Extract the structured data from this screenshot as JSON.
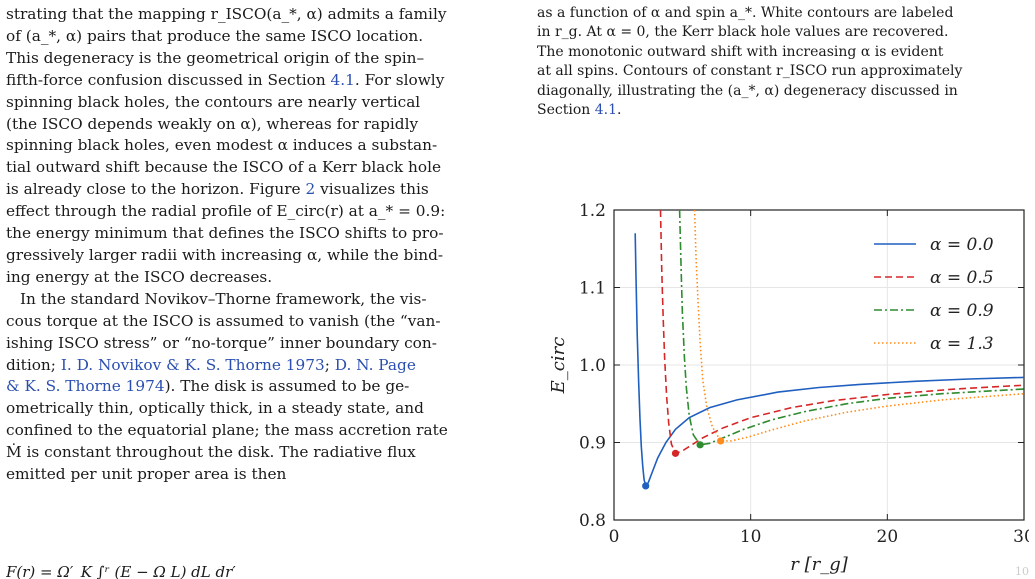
{
  "left_column": {
    "p1_lines": [
      "strating that the mapping r_ISCO(a_*, α) admits a family",
      "of (a_*, α) pairs that produce the same ISCO location.",
      "This degeneracy is the geometrical origin of the spin–",
      "fifth-force confusion discussed in Section ",
      "spinning black holes, the contours are nearly vertical",
      "(the ISCO depends weakly on α), whereas for rapidly",
      "spinning black holes, even modest α induces a substan-",
      "tial outward shift because the ISCO of a Kerr black hole",
      "is already close to the horizon. Figure ",
      "effect through the radial profile of E_circ(r) at a_* = 0.9:",
      "the energy minimum that defines the ISCO shifts to pro-",
      "gressively larger radii with increasing α, while the bind-",
      "ing energy at the ISCO decreases."
    ],
    "section_ref": "4.1",
    "slowly_text": ". For slowly",
    "figure_ref": "2",
    "visualizes_text": " visualizes this",
    "p2_lines": [
      "In the standard Novikov–Thorne framework, the vis-",
      "cous torque at the ISCO is assumed to vanish (the “van-",
      "ishing ISCO stress” or “no-torque” inner boundary con-",
      "dition; ",
      "& K. S. Thorne 1974",
      "). The disk is assumed to be ge-",
      "ometrically thin, optically thick, in a steady state, and",
      "confined to the equatorial plane; the mass accretion rate",
      "Ṁ is constant throughout the disk. The radiative flux",
      "emitted per unit proper area is then"
    ],
    "cite_novikov": "I. D. Novikov & K. S. Thorne 1973",
    "cite_page": "D. N. Page",
    "equation_fragment": "F(r) =          Ω′_K          ∫ʳ  (E − Ω L) dL dr′"
  },
  "right_column": {
    "caption_lines": [
      "as a function of α and spin a_*. White contours are labeled",
      "in r_g. At α = 0, the Kerr black hole values are recovered.",
      "The monotonic outward shift with increasing α is evident",
      "at all spins. Contours of constant r_ISCO run approximately",
      "diagonally, illustrating the (a_*, α) degeneracy discussed in",
      "Section "
    ],
    "caption_section_ref": "4.1",
    "caption_end": "."
  },
  "chart_data": {
    "type": "line",
    "xlabel": "r [r_g]",
    "ylabel": "E_circ",
    "xlim": [
      0,
      30
    ],
    "ylim": [
      0.8,
      1.2
    ],
    "xticks": [
      0,
      10,
      20,
      30
    ],
    "yticks": [
      0.8,
      0.9,
      1.0,
      1.1,
      1.2
    ],
    "grid": true,
    "legend_position": "top-right",
    "series": [
      {
        "name": "α = 0.0",
        "style": "solid",
        "color": "#1f5fbf",
        "x": [
          1.55,
          1.6,
          1.7,
          1.8,
          1.9,
          2.0,
          2.1,
          2.2,
          2.32,
          2.5,
          2.8,
          3.2,
          3.8,
          4.5,
          5.5,
          7,
          9,
          12,
          15,
          18,
          22,
          26,
          30
        ],
        "y": [
          1.17,
          1.12,
          1.04,
          0.98,
          0.93,
          0.895,
          0.87,
          0.852,
          0.844,
          0.848,
          0.862,
          0.88,
          0.9,
          0.917,
          0.932,
          0.945,
          0.955,
          0.965,
          0.971,
          0.975,
          0.979,
          0.982,
          0.984
        ],
        "isco": [
          2.32,
          0.844
        ]
      },
      {
        "name": "α = 0.5",
        "style": "dashed",
        "color": "#d62728",
        "x": [
          3.4,
          3.5,
          3.6,
          3.7,
          3.85,
          4.0,
          4.2,
          4.5,
          5.0,
          5.7,
          6.5,
          8,
          10,
          13,
          16,
          20,
          25,
          30
        ],
        "y": [
          1.2,
          1.12,
          1.06,
          1.01,
          0.96,
          0.925,
          0.898,
          0.886,
          0.889,
          0.897,
          0.906,
          0.919,
          0.932,
          0.945,
          0.954,
          0.962,
          0.969,
          0.974
        ],
        "isco": [
          4.5,
          0.886
        ]
      },
      {
        "name": "α = 0.9",
        "style": "dash-dot",
        "color": "#2e8b2e",
        "x": [
          4.8,
          4.9,
          5.0,
          5.15,
          5.3,
          5.5,
          5.8,
          6.3,
          7.0,
          8,
          9.5,
          11.5,
          14,
          17,
          20,
          24,
          30
        ],
        "y": [
          1.2,
          1.13,
          1.07,
          1.01,
          0.97,
          0.935,
          0.91,
          0.897,
          0.899,
          0.906,
          0.917,
          0.929,
          0.94,
          0.95,
          0.957,
          0.963,
          0.969
        ],
        "isco": [
          6.3,
          0.897
        ]
      },
      {
        "name": "α = 1.3",
        "style": "dotted",
        "color": "#ff8c1a",
        "x": [
          5.9,
          6.0,
          6.15,
          6.3,
          6.5,
          6.8,
          7.2,
          7.8,
          8.6,
          9.8,
          11.5,
          14,
          17,
          20,
          24,
          30
        ],
        "y": [
          1.2,
          1.14,
          1.08,
          1.03,
          0.98,
          0.945,
          0.92,
          0.902,
          0.902,
          0.907,
          0.916,
          0.928,
          0.939,
          0.947,
          0.955,
          0.963
        ],
        "isco": [
          7.8,
          0.902
        ]
      }
    ]
  },
  "corner_mark": "10"
}
